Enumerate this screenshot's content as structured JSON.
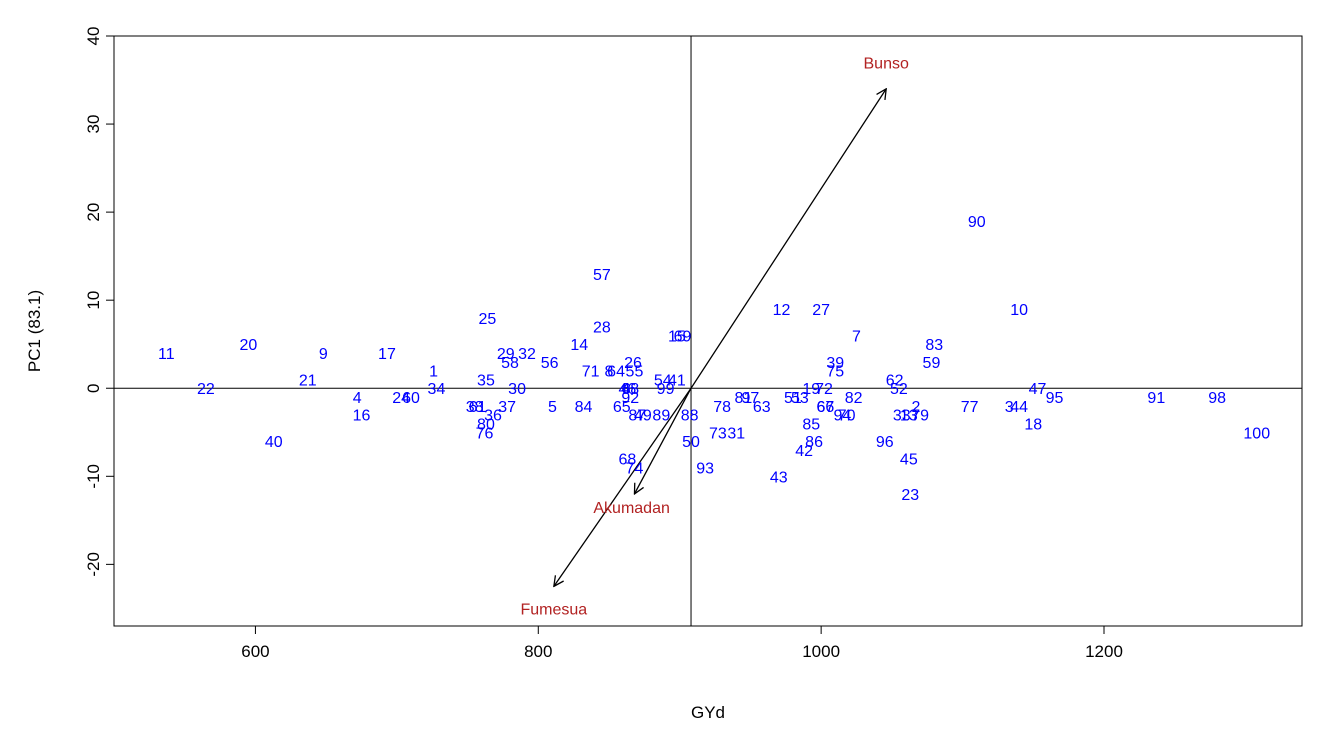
{
  "chart_data": {
    "type": "scatter",
    "title": "",
    "xlabel": "GYd",
    "ylabel": "PC1 (83.1)",
    "xlim": [
      500,
      1340
    ],
    "ylim": [
      -27,
      40
    ],
    "x_ticks": [
      600,
      800,
      1000,
      1200
    ],
    "y_ticks": [
      -20,
      -10,
      0,
      10,
      20,
      30,
      40
    ],
    "reference_lines": {
      "x": 908,
      "y": 0
    },
    "grid": false,
    "colors": {
      "genotype": "#0000ff",
      "environment": "#b22222",
      "vector": "#000000"
    },
    "points": [
      {
        "label": "1",
        "x": 726,
        "y": 2
      },
      {
        "label": "2",
        "x": 1067,
        "y": -2
      },
      {
        "label": "3",
        "x": 1133,
        "y": -2
      },
      {
        "label": "4",
        "x": 672,
        "y": -1
      },
      {
        "label": "5",
        "x": 810,
        "y": -2
      },
      {
        "label": "6",
        "x": 862,
        "y": 0
      },
      {
        "label": "7",
        "x": 1025,
        "y": 6
      },
      {
        "label": "8",
        "x": 850,
        "y": 2
      },
      {
        "label": "9",
        "x": 648,
        "y": 4
      },
      {
        "label": "10",
        "x": 1140,
        "y": 9
      },
      {
        "label": "11",
        "x": 537,
        "y": 4
      },
      {
        "label": "12",
        "x": 972,
        "y": 9
      },
      {
        "label": "13",
        "x": 1062,
        "y": -3
      },
      {
        "label": "14",
        "x": 829,
        "y": 5
      },
      {
        "label": "15",
        "x": 898,
        "y": 6
      },
      {
        "label": "16",
        "x": 675,
        "y": -3
      },
      {
        "label": "17",
        "x": 693,
        "y": 4
      },
      {
        "label": "18",
        "x": 1150,
        "y": -4
      },
      {
        "label": "19",
        "x": 993,
        "y": 0
      },
      {
        "label": "20",
        "x": 595,
        "y": 5
      },
      {
        "label": "21",
        "x": 637,
        "y": 1
      },
      {
        "label": "22",
        "x": 565,
        "y": 0
      },
      {
        "label": "23",
        "x": 1063,
        "y": -12
      },
      {
        "label": "24",
        "x": 703,
        "y": -1
      },
      {
        "label": "25",
        "x": 764,
        "y": 8
      },
      {
        "label": "26",
        "x": 867,
        "y": 3
      },
      {
        "label": "27",
        "x": 1000,
        "y": 9
      },
      {
        "label": "28",
        "x": 845,
        "y": 7
      },
      {
        "label": "29",
        "x": 777,
        "y": 4
      },
      {
        "label": "30",
        "x": 785,
        "y": 0
      },
      {
        "label": "31",
        "x": 940,
        "y": -5
      },
      {
        "label": "32",
        "x": 792,
        "y": 4
      },
      {
        "label": "33",
        "x": 1057,
        "y": -3
      },
      {
        "label": "34",
        "x": 728,
        "y": 0
      },
      {
        "label": "35",
        "x": 763,
        "y": 1
      },
      {
        "label": "36",
        "x": 768,
        "y": -3
      },
      {
        "label": "37",
        "x": 778,
        "y": -2
      },
      {
        "label": "38",
        "x": 755,
        "y": -2
      },
      {
        "label": "39",
        "x": 1010,
        "y": 3
      },
      {
        "label": "40",
        "x": 613,
        "y": -6
      },
      {
        "label": "41",
        "x": 898,
        "y": 1
      },
      {
        "label": "42",
        "x": 988,
        "y": -7
      },
      {
        "label": "43",
        "x": 970,
        "y": -10
      },
      {
        "label": "44",
        "x": 1140,
        "y": -2
      },
      {
        "label": "45",
        "x": 1062,
        "y": -8
      },
      {
        "label": "46",
        "x": 863,
        "y": 0
      },
      {
        "label": "47",
        "x": 1153,
        "y": 0
      },
      {
        "label": "48",
        "x": 865,
        "y": 0
      },
      {
        "label": "49",
        "x": 874,
        "y": -3
      },
      {
        "label": "50",
        "x": 908,
        "y": -6
      },
      {
        "label": "51",
        "x": 980,
        "y": -1
      },
      {
        "label": "52",
        "x": 1055,
        "y": 0
      },
      {
        "label": "53",
        "x": 985,
        "y": -1
      },
      {
        "label": "54",
        "x": 888,
        "y": 1
      },
      {
        "label": "55",
        "x": 868,
        "y": 2
      },
      {
        "label": "56",
        "x": 808,
        "y": 3
      },
      {
        "label": "57",
        "x": 845,
        "y": 13
      },
      {
        "label": "58",
        "x": 780,
        "y": 3
      },
      {
        "label": "59",
        "x": 1078,
        "y": 3
      },
      {
        "label": "60",
        "x": 710,
        "y": -1
      },
      {
        "label": "61",
        "x": 757,
        "y": -2
      },
      {
        "label": "62",
        "x": 1052,
        "y": 1
      },
      {
        "label": "63",
        "x": 958,
        "y": -2
      },
      {
        "label": "64",
        "x": 855,
        "y": 2
      },
      {
        "label": "65",
        "x": 859,
        "y": -2
      },
      {
        "label": "66",
        "x": 1003,
        "y": -2
      },
      {
        "label": "67",
        "x": 1003,
        "y": -2
      },
      {
        "label": "68",
        "x": 863,
        "y": -8
      },
      {
        "label": "69",
        "x": 902,
        "y": 6
      },
      {
        "label": "70",
        "x": 1018,
        "y": -3
      },
      {
        "label": "71",
        "x": 837,
        "y": 2
      },
      {
        "label": "72",
        "x": 1002,
        "y": 0
      },
      {
        "label": "73",
        "x": 927,
        "y": -5
      },
      {
        "label": "74",
        "x": 868,
        "y": -9
      },
      {
        "label": "75",
        "x": 1010,
        "y": 2
      },
      {
        "label": "76",
        "x": 762,
        "y": -5
      },
      {
        "label": "77",
        "x": 1105,
        "y": -2
      },
      {
        "label": "78",
        "x": 930,
        "y": -2
      },
      {
        "label": "79",
        "x": 1070,
        "y": -3
      },
      {
        "label": "80",
        "x": 763,
        "y": -4
      },
      {
        "label": "81",
        "x": 945,
        "y": -1
      },
      {
        "label": "82",
        "x": 1023,
        "y": -1
      },
      {
        "label": "83",
        "x": 1080,
        "y": 5
      },
      {
        "label": "84",
        "x": 832,
        "y": -2
      },
      {
        "label": "85",
        "x": 993,
        "y": -4
      },
      {
        "label": "86",
        "x": 995,
        "y": -6
      },
      {
        "label": "87",
        "x": 870,
        "y": -3
      },
      {
        "label": "88",
        "x": 907,
        "y": -3
      },
      {
        "label": "89",
        "x": 887,
        "y": -3
      },
      {
        "label": "90",
        "x": 1110,
        "y": 19
      },
      {
        "label": "91",
        "x": 1237,
        "y": -1
      },
      {
        "label": "92",
        "x": 865,
        "y": -1
      },
      {
        "label": "93",
        "x": 918,
        "y": -9
      },
      {
        "label": "94",
        "x": 1015,
        "y": -3
      },
      {
        "label": "95",
        "x": 1165,
        "y": -1
      },
      {
        "label": "96",
        "x": 1045,
        "y": -6
      },
      {
        "label": "97",
        "x": 950,
        "y": -1
      },
      {
        "label": "98",
        "x": 1280,
        "y": -1
      },
      {
        "label": "99",
        "x": 890,
        "y": 0
      },
      {
        "label": "100",
        "x": 1308,
        "y": -5
      }
    ],
    "environments": [
      {
        "name": "Bunso",
        "label_x": 1046,
        "label_y": 37,
        "arrow_x": 1046,
        "arrow_y": 34
      },
      {
        "name": "Akumadan",
        "label_x": 866,
        "label_y": -13.5,
        "arrow_x": 868,
        "arrow_y": -12
      },
      {
        "name": "Fumesua",
        "label_x": 811,
        "label_y": -25,
        "arrow_x": 811,
        "arrow_y": -22.5
      }
    ]
  }
}
